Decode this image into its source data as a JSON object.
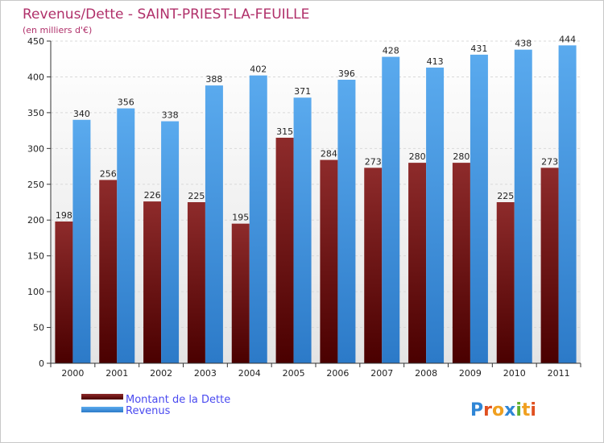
{
  "chart_data": {
    "type": "bar",
    "title": "Revenus/Dette - SAINT-PRIEST-LA-FEUILLE",
    "subtitle": "(en milliers d'€)",
    "categories": [
      "2000",
      "2001",
      "2002",
      "2003",
      "2004",
      "2005",
      "2006",
      "2007",
      "2008",
      "2009",
      "2010",
      "2011"
    ],
    "series": [
      {
        "name": "Montant de la Dette",
        "color": "#7a1a1a",
        "values": [
          198,
          256,
          226,
          225,
          195,
          315,
          284,
          273,
          280,
          280,
          225,
          273
        ]
      },
      {
        "name": "Revenus",
        "color": "#4a9ce0",
        "values": [
          340,
          356,
          338,
          388,
          402,
          371,
          396,
          428,
          413,
          431,
          438,
          444
        ]
      }
    ],
    "yticks": [
      0,
      50,
      100,
      150,
      200,
      250,
      300,
      350,
      400,
      450
    ],
    "ylim": [
      0,
      450
    ],
    "grid": true,
    "legend_position": "bottom-left"
  },
  "logo": {
    "text": "Proxiti"
  }
}
